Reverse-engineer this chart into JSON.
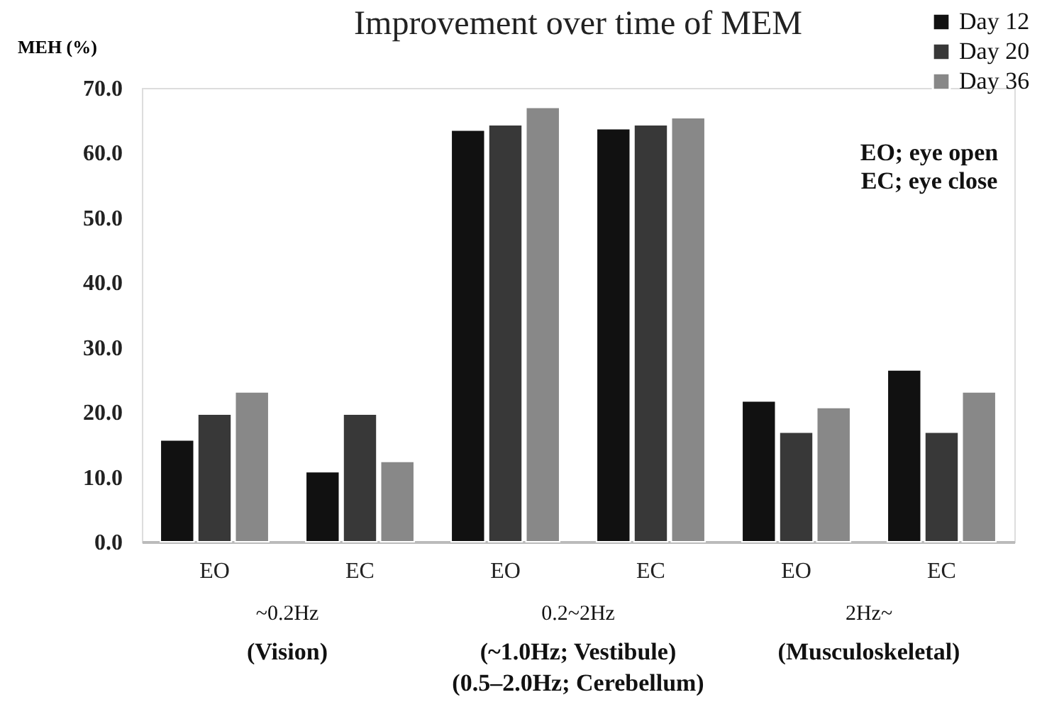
{
  "chart_data": {
    "type": "bar",
    "title": "Improvement over time of MEM",
    "ylabel": "MEH (%)",
    "categories": [
      "EO",
      "EC",
      "EO",
      "EC",
      "EO",
      "EC"
    ],
    "series": [
      {
        "name": "Day 12",
        "color": "#111111",
        "values": [
          15.7,
          10.8,
          63.5,
          63.7,
          21.7,
          26.5
        ]
      },
      {
        "name": "Day 20",
        "color": "#383838",
        "values": [
          19.7,
          19.7,
          64.3,
          64.3,
          16.9,
          16.9
        ]
      },
      {
        "name": "Day 36",
        "color": "#888888",
        "values": [
          23.1,
          12.4,
          67.0,
          65.4,
          20.7,
          23.1
        ]
      }
    ],
    "ylim": [
      0,
      70
    ],
    "yticks": [
      {
        "value": 0,
        "label": "0.0"
      },
      {
        "value": 10,
        "label": "10.0"
      },
      {
        "value": 20,
        "label": "20.0"
      },
      {
        "value": 30,
        "label": "30.0"
      },
      {
        "value": 40,
        "label": "40.0"
      },
      {
        "value": 50,
        "label": "50.0"
      },
      {
        "value": 60,
        "label": "60.0"
      },
      {
        "value": 70,
        "label": "70.0"
      }
    ],
    "grid": false,
    "legend": "top right",
    "annotations": [
      "~0.2Hz",
      "0.2~2Hz",
      "2Hz~",
      "(Vision)",
      "(~1.0Hz; Vestibule)",
      "(Musculoskeletal)",
      "(0.5–2.0Hz; Cerebellum)",
      "EO; eye open",
      "EC; eye close"
    ]
  }
}
